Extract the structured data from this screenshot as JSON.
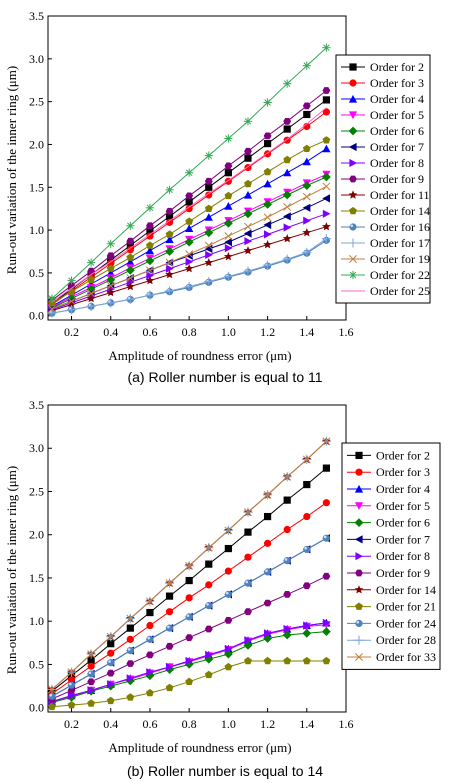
{
  "chart_data": [
    {
      "type": "line",
      "caption": "(a) Roller number is equal to 11",
      "xlabel": "Amplitude of roundness error (μm)",
      "ylabel": "Run-out variation of the inner ring (μm)",
      "xlim": [
        0.08,
        1.6
      ],
      "ylim": [
        -0.05,
        3.5
      ],
      "xticks": [
        0.2,
        0.4,
        0.6,
        0.8,
        1.0,
        1.2,
        1.4,
        1.6
      ],
      "xtick_labels": [
        "0.2",
        "0.4",
        "0.6",
        "0.8",
        "1.0",
        "1.2",
        "1.4",
        "1.6"
      ],
      "yticks": [
        0.0,
        0.5,
        1.0,
        1.5,
        2.0,
        2.5,
        3.0,
        3.5
      ],
      "ytick_labels": [
        "0.0",
        "0.5",
        "1.0",
        "1.5",
        "2.0",
        "2.5",
        "3.0",
        "3.5"
      ],
      "legend_position": "right",
      "x": [
        0.1,
        0.2,
        0.3,
        0.4,
        0.5,
        0.6,
        0.7,
        0.8,
        0.9,
        1.0,
        1.1,
        1.2,
        1.3,
        1.4,
        1.5
      ],
      "series": [
        {
          "name": "Order for 2",
          "marker": "square",
          "color": "#000000",
          "values": [
            0.14,
            0.31,
            0.48,
            0.65,
            0.82,
            0.99,
            1.16,
            1.33,
            1.5,
            1.67,
            1.84,
            2.01,
            2.18,
            2.35,
            2.52
          ]
        },
        {
          "name": "Order for 3",
          "marker": "circle",
          "color": "#ff0000",
          "values": [
            0.13,
            0.29,
            0.45,
            0.61,
            0.77,
            0.93,
            1.09,
            1.25,
            1.41,
            1.57,
            1.73,
            1.89,
            2.05,
            2.21,
            2.38
          ]
        },
        {
          "name": "Order for 4",
          "marker": "triangle-up",
          "color": "#0000ff",
          "values": [
            0.11,
            0.24,
            0.37,
            0.5,
            0.63,
            0.76,
            0.89,
            1.02,
            1.15,
            1.28,
            1.41,
            1.54,
            1.67,
            1.8,
            1.95
          ]
        },
        {
          "name": "Order for 5",
          "marker": "triangle-down",
          "color": "#ff00ff",
          "values": [
            0.1,
            0.22,
            0.33,
            0.44,
            0.56,
            0.67,
            0.78,
            0.89,
            1.0,
            1.11,
            1.22,
            1.33,
            1.44,
            1.55,
            1.65
          ]
        },
        {
          "name": "Order for 6",
          "marker": "diamond",
          "color": "#008000",
          "values": [
            0.09,
            0.2,
            0.31,
            0.42,
            0.53,
            0.64,
            0.75,
            0.86,
            0.97,
            1.08,
            1.19,
            1.3,
            1.41,
            1.52,
            1.62
          ]
        },
        {
          "name": "Order for 7",
          "marker": "triangle-left",
          "color": "#000080",
          "values": [
            0.08,
            0.17,
            0.26,
            0.35,
            0.44,
            0.53,
            0.62,
            0.7,
            0.78,
            0.86,
            0.96,
            1.06,
            1.16,
            1.26,
            1.37
          ]
        },
        {
          "name": "Order for 8",
          "marker": "triangle-right",
          "color": "#8000ff",
          "values": [
            0.07,
            0.15,
            0.23,
            0.31,
            0.39,
            0.47,
            0.55,
            0.63,
            0.71,
            0.79,
            0.87,
            0.95,
            1.03,
            1.11,
            1.19
          ]
        },
        {
          "name": "Order for 9",
          "marker": "hexagon",
          "color": "#800080",
          "values": [
            0.18,
            0.35,
            0.52,
            0.7,
            0.87,
            1.05,
            1.22,
            1.4,
            1.57,
            1.75,
            1.92,
            2.1,
            2.27,
            2.45,
            2.63
          ]
        },
        {
          "name": "Order for 11",
          "marker": "star",
          "color": "#800000",
          "values": [
            0.06,
            0.13,
            0.2,
            0.27,
            0.34,
            0.41,
            0.48,
            0.55,
            0.62,
            0.69,
            0.76,
            0.83,
            0.9,
            0.97,
            1.04
          ]
        },
        {
          "name": "Order for 14",
          "marker": "pentagon",
          "color": "#808000",
          "values": [
            0.15,
            0.28,
            0.42,
            0.55,
            0.68,
            0.82,
            0.95,
            1.1,
            1.25,
            1.4,
            1.54,
            1.68,
            1.82,
            1.95,
            2.05
          ]
        },
        {
          "name": "Order for 16",
          "marker": "sphere",
          "color": "#4f81bd",
          "values": [
            0.03,
            0.07,
            0.11,
            0.15,
            0.19,
            0.24,
            0.28,
            0.33,
            0.39,
            0.45,
            0.51,
            0.58,
            0.65,
            0.73,
            0.88
          ]
        },
        {
          "name": "Order for 17",
          "marker": "plus",
          "color": "#7ba7d8",
          "values": [
            0.03,
            0.07,
            0.11,
            0.15,
            0.19,
            0.24,
            0.29,
            0.34,
            0.4,
            0.46,
            0.52,
            0.59,
            0.66,
            0.74,
            0.9
          ]
        },
        {
          "name": "Order for 19",
          "marker": "x",
          "color": "#c08040",
          "values": [
            0.08,
            0.17,
            0.26,
            0.35,
            0.44,
            0.53,
            0.62,
            0.72,
            0.82,
            0.93,
            1.04,
            1.15,
            1.27,
            1.39,
            1.51
          ]
        },
        {
          "name": "Order for 22",
          "marker": "asterisk",
          "color": "#33aa55",
          "values": [
            0.2,
            0.41,
            0.62,
            0.84,
            1.05,
            1.26,
            1.47,
            1.67,
            1.87,
            2.07,
            2.27,
            2.49,
            2.71,
            2.92,
            3.13
          ]
        },
        {
          "name": "Order for 25",
          "marker": "none",
          "color": "#ff66cc",
          "values": [
            0.16,
            0.32,
            0.48,
            0.63,
            0.79,
            0.95,
            1.11,
            1.27,
            1.43,
            1.58,
            1.74,
            1.9,
            2.06,
            2.24,
            2.43
          ]
        }
      ]
    },
    {
      "type": "line",
      "caption": "(b) Roller number is equal to 14",
      "xlabel": "Amplitude of roundness error (μm)",
      "ylabel": "Run-out variation of the inner ring (μm)",
      "xlim": [
        0.08,
        1.6
      ],
      "ylim": [
        -0.05,
        3.5
      ],
      "xticks": [
        0.2,
        0.4,
        0.6,
        0.8,
        1.0,
        1.2,
        1.4,
        1.6
      ],
      "xtick_labels": [
        "0.2",
        "0.4",
        "0.6",
        "0.8",
        "1.0",
        "1.2",
        "1.4",
        "1.6"
      ],
      "yticks": [
        0.0,
        0.5,
        1.0,
        1.5,
        2.0,
        2.5,
        3.0,
        3.5
      ],
      "ytick_labels": [
        "0.0",
        "0.5",
        "1.0",
        "1.5",
        "2.0",
        "2.5",
        "3.0",
        "3.5"
      ],
      "legend_position": "right",
      "x": [
        0.1,
        0.2,
        0.3,
        0.4,
        0.5,
        0.6,
        0.7,
        0.8,
        0.9,
        1.0,
        1.1,
        1.2,
        1.3,
        1.4,
        1.5
      ],
      "series": [
        {
          "name": "Order for 2",
          "marker": "square",
          "color": "#000000",
          "values": [
            0.19,
            0.37,
            0.55,
            0.74,
            0.92,
            1.1,
            1.29,
            1.47,
            1.66,
            1.84,
            2.03,
            2.21,
            2.4,
            2.58,
            2.77
          ]
        },
        {
          "name": "Order for 3",
          "marker": "circle",
          "color": "#ff0000",
          "values": [
            0.16,
            0.32,
            0.48,
            0.63,
            0.79,
            0.95,
            1.11,
            1.27,
            1.42,
            1.58,
            1.74,
            1.9,
            2.06,
            2.21,
            2.37
          ]
        },
        {
          "name": "Order for 4",
          "marker": "triangle-up",
          "color": "#0000ff",
          "values": [
            0.07,
            0.14,
            0.2,
            0.27,
            0.34,
            0.41,
            0.47,
            0.54,
            0.61,
            0.68,
            0.78,
            0.86,
            0.91,
            0.95,
            0.98
          ]
        },
        {
          "name": "Order for 5",
          "marker": "triangle-down",
          "color": "#ff00ff",
          "values": [
            0.07,
            0.13,
            0.2,
            0.27,
            0.33,
            0.4,
            0.47,
            0.53,
            0.6,
            0.67,
            0.77,
            0.85,
            0.9,
            0.94,
            0.96
          ]
        },
        {
          "name": "Order for 6",
          "marker": "diamond",
          "color": "#008000",
          "values": [
            0.06,
            0.12,
            0.19,
            0.25,
            0.31,
            0.37,
            0.44,
            0.5,
            0.56,
            0.62,
            0.72,
            0.8,
            0.84,
            0.86,
            0.88
          ]
        },
        {
          "name": "Order for 7",
          "marker": "triangle-left",
          "color": "#000080",
          "values": [
            0.13,
            0.26,
            0.39,
            0.52,
            0.66,
            0.79,
            0.92,
            1.05,
            1.18,
            1.31,
            1.44,
            1.57,
            1.7,
            1.83,
            1.96
          ]
        },
        {
          "name": "Order for 8",
          "marker": "triangle-right",
          "color": "#8000ff",
          "values": [
            0.07,
            0.14,
            0.2,
            0.27,
            0.34,
            0.41,
            0.47,
            0.54,
            0.61,
            0.68,
            0.78,
            0.86,
            0.91,
            0.95,
            0.98
          ]
        },
        {
          "name": "Order for 9",
          "marker": "hexagon",
          "color": "#800080",
          "values": [
            0.1,
            0.2,
            0.3,
            0.4,
            0.51,
            0.61,
            0.71,
            0.81,
            0.91,
            1.01,
            1.11,
            1.21,
            1.31,
            1.41,
            1.52
          ]
        },
        {
          "name": "Order for 14",
          "marker": "star",
          "color": "#800000",
          "values": [
            0.21,
            0.41,
            0.62,
            0.82,
            1.03,
            1.23,
            1.44,
            1.64,
            1.85,
            2.05,
            2.26,
            2.46,
            2.67,
            2.87,
            3.08
          ]
        },
        {
          "name": "Order for 21",
          "marker": "pentagon",
          "color": "#808000",
          "values": [
            0.01,
            0.03,
            0.05,
            0.08,
            0.12,
            0.17,
            0.23,
            0.3,
            0.38,
            0.47,
            0.54,
            0.54,
            0.54,
            0.54,
            0.54
          ]
        },
        {
          "name": "Order for 24",
          "marker": "sphere",
          "color": "#4f81bd",
          "values": [
            0.13,
            0.26,
            0.39,
            0.52,
            0.66,
            0.79,
            0.92,
            1.05,
            1.18,
            1.31,
            1.44,
            1.57,
            1.7,
            1.83,
            1.96
          ]
        },
        {
          "name": "Order for 28",
          "marker": "plus",
          "color": "#7ba7d8",
          "values": [
            0.21,
            0.41,
            0.62,
            0.82,
            1.03,
            1.23,
            1.44,
            1.64,
            1.85,
            2.05,
            2.26,
            2.46,
            2.67,
            2.87,
            3.08
          ]
        },
        {
          "name": "Order for 33",
          "marker": "x",
          "color": "#c08040",
          "values": [
            0.21,
            0.41,
            0.62,
            0.82,
            1.03,
            1.23,
            1.44,
            1.64,
            1.85,
            2.05,
            2.26,
            2.46,
            2.67,
            2.87,
            3.08
          ]
        }
      ]
    }
  ]
}
